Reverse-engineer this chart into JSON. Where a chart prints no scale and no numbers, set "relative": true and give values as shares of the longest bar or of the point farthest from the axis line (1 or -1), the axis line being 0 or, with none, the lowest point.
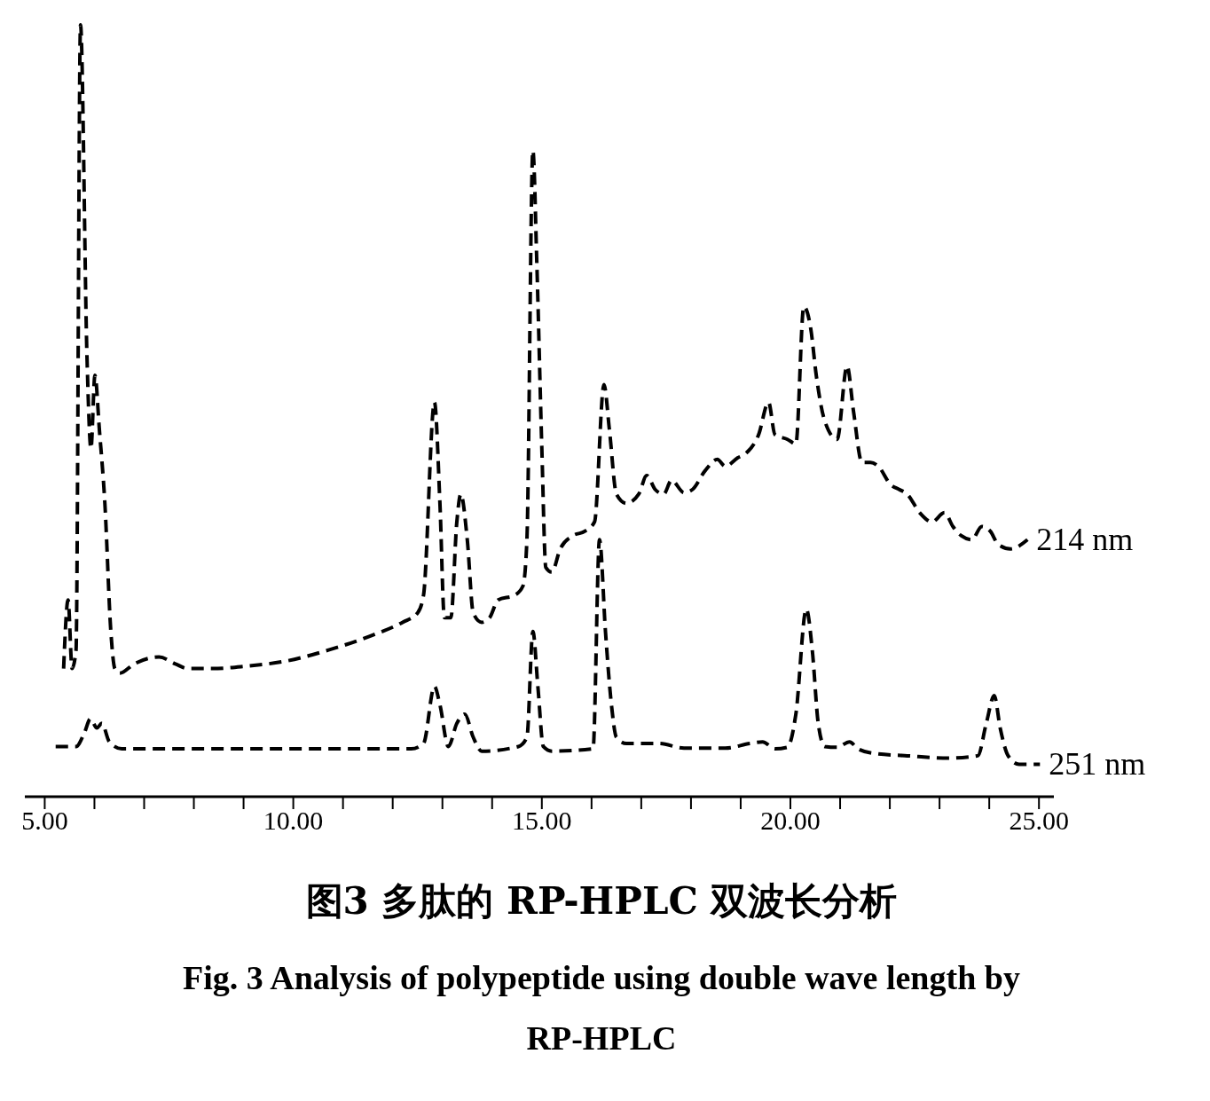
{
  "chart_data": {
    "type": "line",
    "title": "图3 多肽的 RP-HPLC 双波长分析",
    "subtitle": "Fig. 3 Analysis of polypeptide using double wave length by RP-HPLC",
    "relative": true,
    "line_style": "dashed",
    "xlim": [
      4.6,
      25.3
    ],
    "xticks": [
      {
        "value": 5,
        "label": "5.00"
      },
      {
        "value": 6,
        "label": null
      },
      {
        "value": 7,
        "label": null
      },
      {
        "value": 8,
        "label": null
      },
      {
        "value": 9,
        "label": null
      },
      {
        "value": 10,
        "label": "10.00"
      },
      {
        "value": 11,
        "label": null
      },
      {
        "value": 12,
        "label": null
      },
      {
        "value": 13,
        "label": null
      },
      {
        "value": 14,
        "label": null
      },
      {
        "value": 15,
        "label": "15.00"
      },
      {
        "value": 16,
        "label": null
      },
      {
        "value": 17,
        "label": null
      },
      {
        "value": 18,
        "label": null
      },
      {
        "value": 19,
        "label": null
      },
      {
        "value": 20,
        "label": "20.00"
      },
      {
        "value": 21,
        "label": null
      },
      {
        "value": 22,
        "label": null
      },
      {
        "value": 23,
        "label": null
      },
      {
        "value": 24,
        "label": null
      },
      {
        "value": 25,
        "label": "25.00"
      }
    ],
    "series": [
      {
        "name": "214 nm",
        "color": "#000000",
        "x": [
          5.38,
          5.47,
          5.55,
          5.63,
          5.72,
          5.85,
          5.93,
          6.01,
          6.1,
          6.21,
          6.33,
          6.41,
          6.51,
          6.8,
          7.3,
          7.63,
          7.88,
          8.38,
          9.04,
          9.88,
          10.71,
          11.54,
          12.2,
          12.5,
          12.62,
          12.84,
          12.95,
          13.04,
          13.17,
          13.29,
          13.37,
          13.5,
          13.62,
          13.79,
          13.95,
          14.12,
          14.45,
          14.62,
          14.7,
          14.82,
          14.9,
          15.0,
          15.08,
          15.2,
          15.37,
          15.62,
          15.87,
          16.06,
          16.25,
          16.36,
          16.5,
          16.7,
          16.95,
          17.11,
          17.28,
          17.45,
          17.61,
          17.86,
          18.03,
          18.28,
          18.53,
          18.69,
          18.94,
          19.11,
          19.36,
          19.56,
          19.69,
          19.94,
          20.11,
          20.27,
          20.41,
          20.52,
          20.69,
          20.94,
          21.14,
          21.27,
          21.44,
          21.61,
          21.77,
          22.02,
          22.19,
          22.35,
          22.6,
          22.85,
          23.1,
          23.27,
          23.44,
          23.65,
          23.85,
          24.02,
          24.18,
          24.43,
          24.77
        ],
        "values": [
          0.166,
          0.255,
          0.166,
          0.19,
          1.0,
          0.57,
          0.451,
          0.546,
          0.475,
          0.38,
          0.214,
          0.166,
          0.16,
          0.172,
          0.181,
          0.172,
          0.166,
          0.166,
          0.169,
          0.176,
          0.19,
          0.208,
          0.226,
          0.238,
          0.261,
          0.511,
          0.38,
          0.232,
          0.232,
          0.356,
          0.392,
          0.333,
          0.238,
          0.226,
          0.232,
          0.255,
          0.261,
          0.273,
          0.333,
          0.837,
          0.689,
          0.451,
          0.297,
          0.291,
          0.321,
          0.338,
          0.344,
          0.356,
          0.534,
          0.475,
          0.392,
          0.38,
          0.392,
          0.416,
          0.398,
          0.392,
          0.41,
          0.394,
          0.398,
          0.422,
          0.437,
          0.428,
          0.439,
          0.445,
          0.469,
          0.511,
          0.469,
          0.463,
          0.457,
          0.635,
          0.606,
          0.546,
          0.487,
          0.463,
          0.558,
          0.499,
          0.433,
          0.433,
          0.428,
          0.404,
          0.398,
          0.392,
          0.368,
          0.356,
          0.368,
          0.35,
          0.338,
          0.333,
          0.35,
          0.344,
          0.327,
          0.321,
          0.333
        ]
      },
      {
        "name": "251 nm",
        "color": "#000000",
        "x": [
          5.22,
          5.63,
          5.8,
          5.92,
          6.05,
          6.15,
          6.3,
          6.55,
          9.04,
          12.37,
          12.62,
          12.84,
          12.95,
          13.12,
          13.29,
          13.45,
          13.62,
          13.79,
          14.53,
          14.7,
          14.82,
          14.92,
          15.03,
          15.2,
          16.03,
          16.16,
          16.28,
          16.4,
          16.5,
          16.7,
          17.36,
          17.86,
          18.69,
          19.19,
          19.44,
          19.69,
          19.94,
          20.11,
          20.32,
          20.44,
          20.56,
          20.69,
          20.94,
          21.19,
          21.36,
          21.69,
          22.35,
          23.19,
          23.77,
          23.94,
          24.1,
          24.22,
          24.38,
          24.6,
          25.02
        ],
        "values": [
          0.065,
          0.065,
          0.083,
          0.101,
          0.089,
          0.095,
          0.071,
          0.062,
          0.062,
          0.062,
          0.069,
          0.143,
          0.119,
          0.065,
          0.095,
          0.107,
          0.077,
          0.059,
          0.065,
          0.077,
          0.214,
          0.143,
          0.065,
          0.059,
          0.062,
          0.333,
          0.214,
          0.119,
          0.077,
          0.069,
          0.069,
          0.063,
          0.063,
          0.069,
          0.071,
          0.062,
          0.064,
          0.107,
          0.243,
          0.19,
          0.095,
          0.065,
          0.064,
          0.071,
          0.062,
          0.056,
          0.053,
          0.05,
          0.053,
          0.095,
          0.131,
          0.089,
          0.053,
          0.042,
          0.042
        ]
      }
    ]
  }
}
